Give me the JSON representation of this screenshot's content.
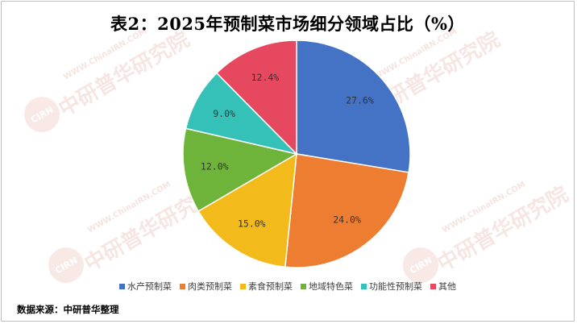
{
  "chart_data": {
    "type": "pie",
    "title": "表2：2025年预制菜市场细分领域占比（%）",
    "categories": [
      "水产预制菜",
      "肉类预制菜",
      "素食预制菜",
      "地域特色菜",
      "功能性预制菜",
      "其他"
    ],
    "values": [
      27.6,
      24.0,
      15.0,
      12.0,
      9.0,
      12.4
    ],
    "labels": [
      "27.6%",
      "24.0%",
      "15.0%",
      "12.0%",
      "9.0%",
      "12.4%"
    ],
    "colors": [
      "#4472C4",
      "#ED7D31",
      "#F2BA1A",
      "#6FB43A",
      "#35C1B8",
      "#E5485F"
    ],
    "legend_position": "bottom"
  },
  "source": "数据来源：中研普华整理",
  "watermark": {
    "logo": "CIRN",
    "text": "中研普华研究院",
    "url": "WWW.ChinaIRN.COM"
  }
}
